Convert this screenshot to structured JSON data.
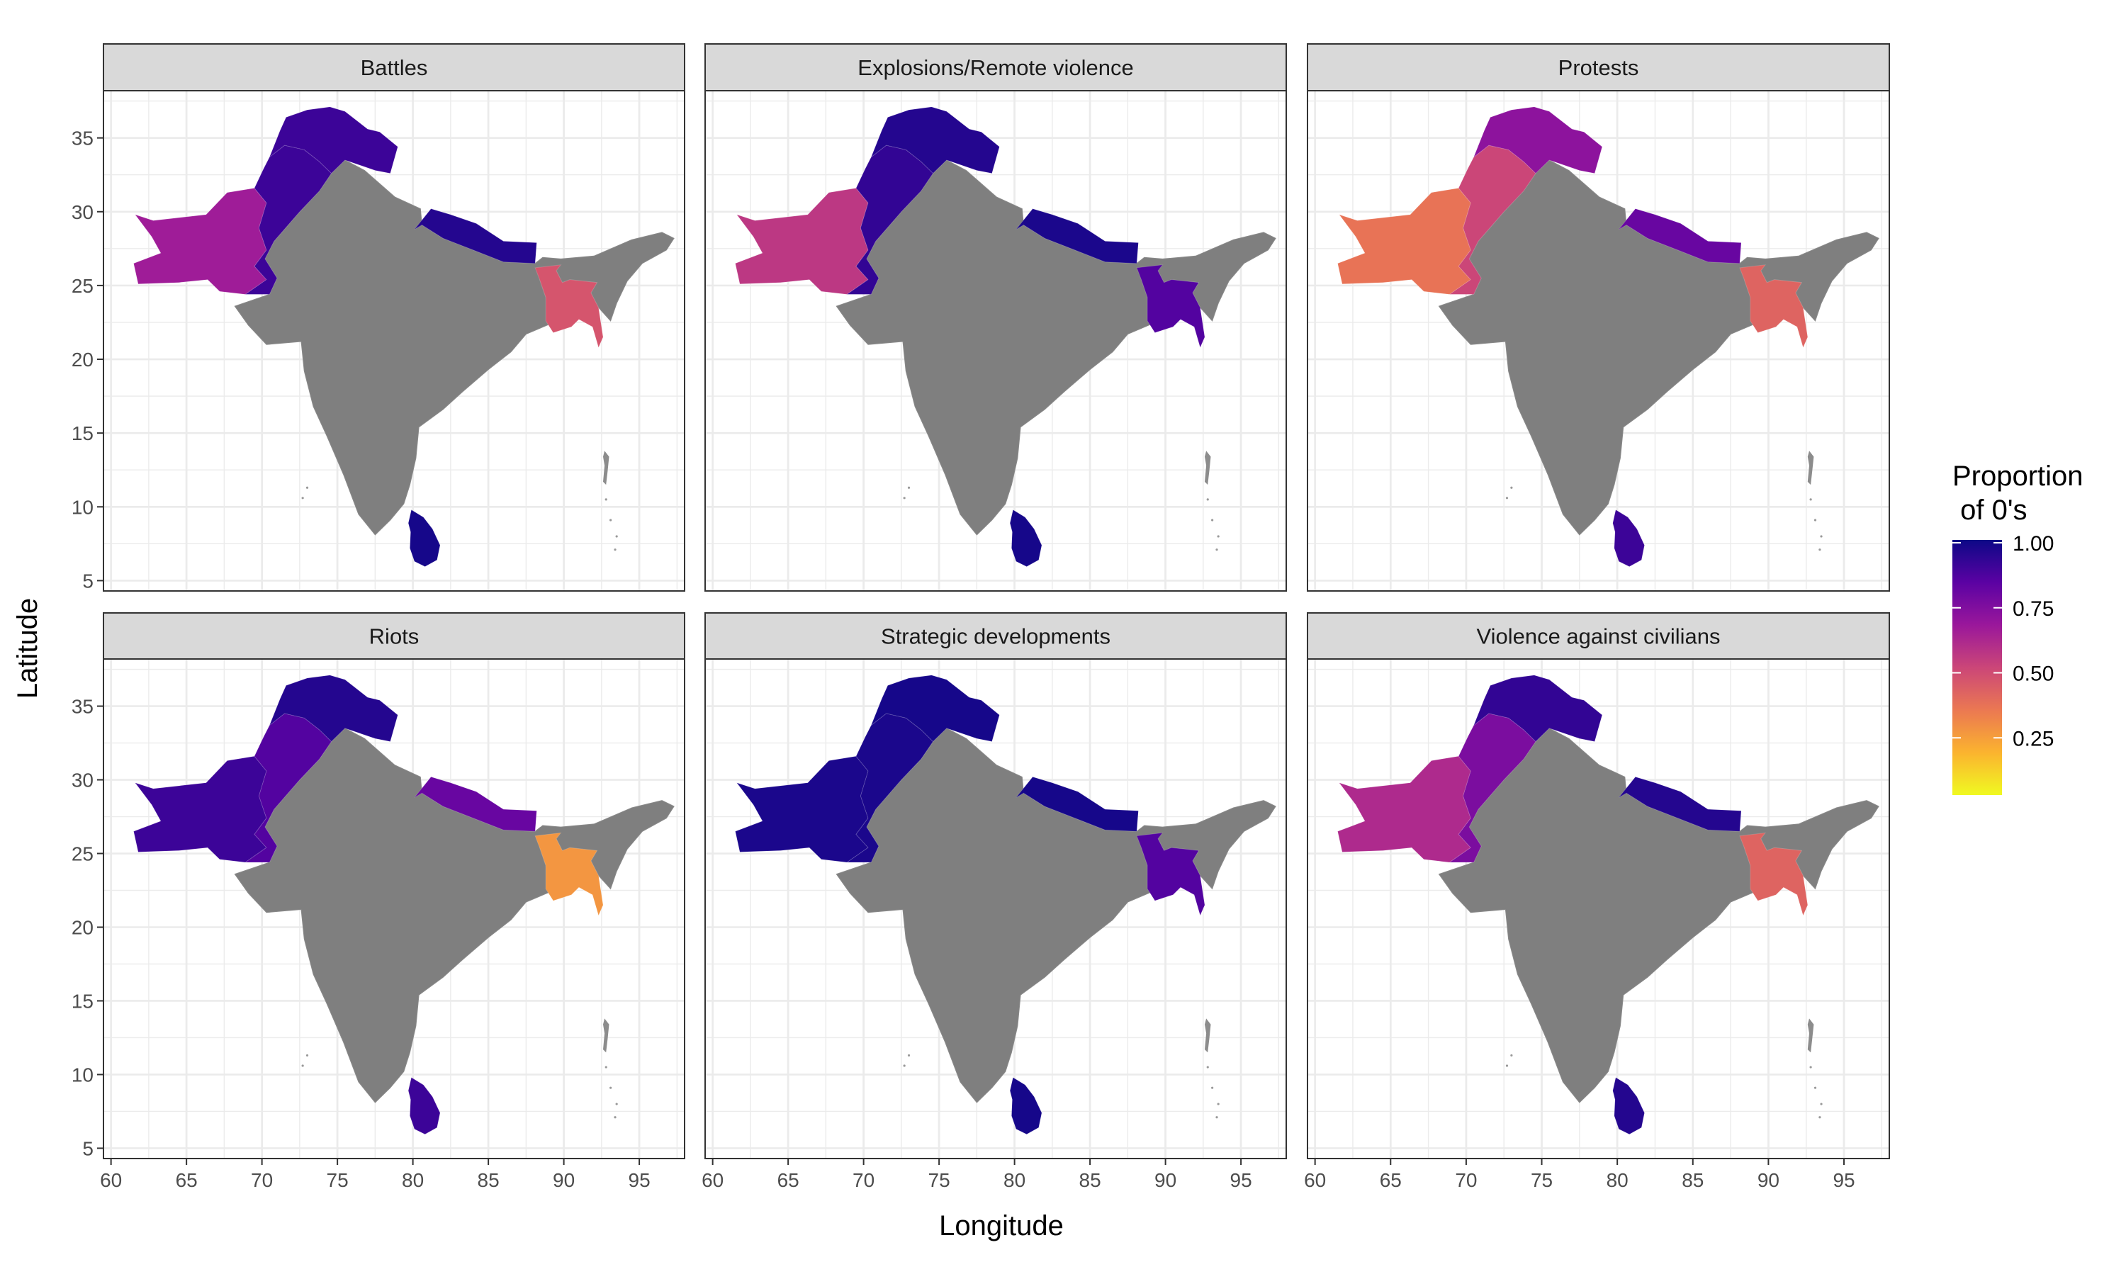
{
  "x_axis_title": "Longitude",
  "y_axis_title": "Latitude",
  "x_ticks": [
    "60",
    "65",
    "70",
    "75",
    "80",
    "85",
    "90",
    "95"
  ],
  "y_ticks": [
    "5",
    "10",
    "15",
    "20",
    "25",
    "30",
    "35"
  ],
  "legend": {
    "title_line1": "Proportion",
    "title_line2": " of 0's",
    "ticks": [
      "1.00",
      "0.75",
      "0.50",
      "0.25"
    ],
    "colors": [
      "#0d0887",
      "#5b02a3",
      "#9a179b",
      "#cb4678",
      "#eb7852",
      "#fbb32f",
      "#f0f921"
    ]
  },
  "chart_data": {
    "type": "choropleth map",
    "xlim": [
      59.5,
      98
    ],
    "ylim": [
      4.3,
      38.2
    ],
    "grid": true,
    "legend_placement": "right",
    "facets": [
      {
        "title": "Battles",
        "values": {
          "pak_west": 0.65,
          "pak_ne": 0.9,
          "pak_n": 0.9,
          "nepal": 0.95,
          "bangladesh": 0.45,
          "srilanka": 0.98
        }
      },
      {
        "title": "Explosions/Remote violence",
        "values": {
          "pak_west": 0.55,
          "pak_ne": 0.92,
          "pak_n": 0.95,
          "nepal": 0.97,
          "bangladesh": 0.85,
          "srilanka": 0.98
        }
      },
      {
        "title": "Protests",
        "values": {
          "pak_west": 0.35,
          "pak_ne": 0.5,
          "pak_n": 0.7,
          "nepal": 0.8,
          "bangladesh": 0.4,
          "srilanka": 0.9
        }
      },
      {
        "title": "Riots",
        "values": {
          "pak_west": 0.9,
          "pak_ne": 0.85,
          "pak_n": 0.95,
          "nepal": 0.8,
          "bangladesh": 0.25,
          "srilanka": 0.9
        }
      },
      {
        "title": "Strategic developments",
        "values": {
          "pak_west": 0.97,
          "pak_ne": 0.97,
          "pak_n": 0.98,
          "nepal": 0.98,
          "bangladesh": 0.85,
          "srilanka": 0.98
        }
      },
      {
        "title": "Violence against civilians",
        "values": {
          "pak_west": 0.6,
          "pak_ne": 0.75,
          "pak_n": 0.92,
          "nepal": 0.95,
          "bangladesh": 0.4,
          "srilanka": 0.95
        }
      }
    ]
  }
}
